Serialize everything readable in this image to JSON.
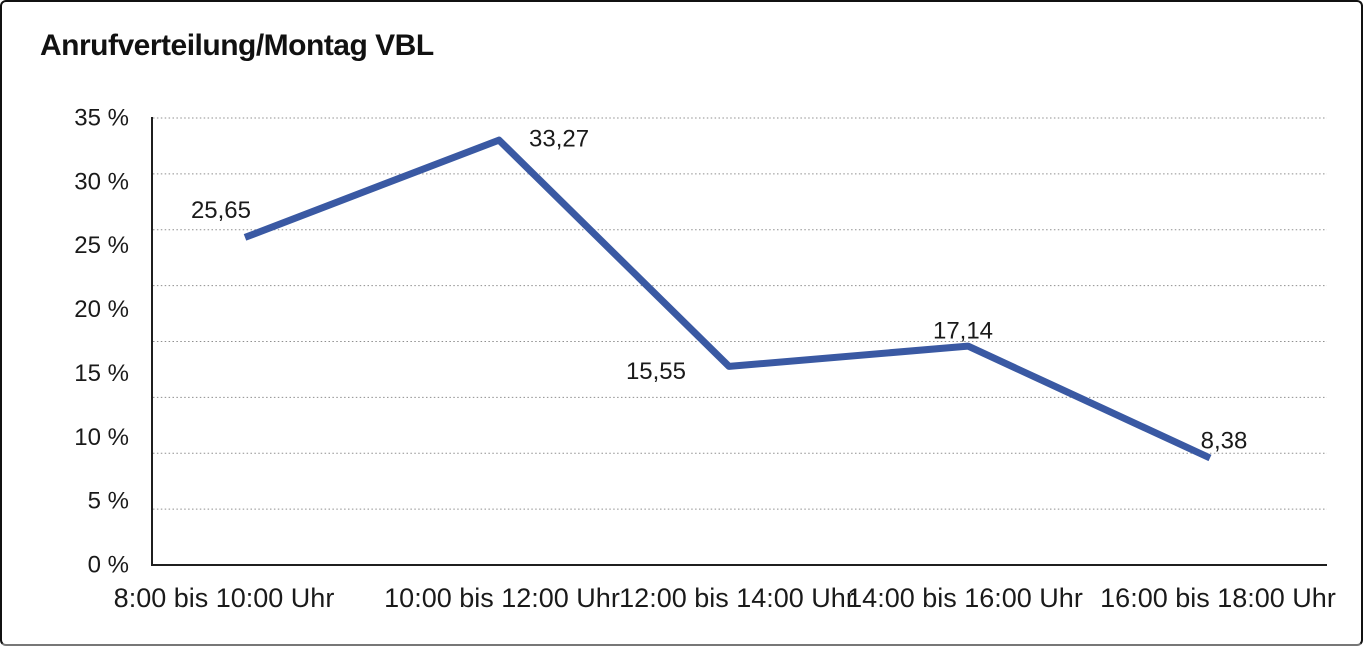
{
  "title": "Anrufverteilung/Montag VBL",
  "chart_data": {
    "type": "line",
    "title": "Anrufverteilung/Montag VBL",
    "categories": [
      "8:00 bis 10:00 Uhr",
      "10:00 bis 12:00 Uhr",
      "12:00 bis 14:00 Uhr",
      "14:00 bis 16:00 Uhr",
      "16:00 bis 18:00 Uhr"
    ],
    "series": [
      {
        "name": "",
        "values": [
          25.65,
          33.27,
          15.55,
          17.14,
          8.38
        ],
        "value_labels": [
          "25,65",
          "33,27",
          "15,55",
          "17,14",
          "8,38"
        ],
        "color": "#3A59A3"
      }
    ],
    "y_tick_labels": [
      "35 %",
      "30 %",
      "25 %",
      "20 %",
      "15 %",
      "10 %",
      "5 %",
      "0 %"
    ],
    "ylim": [
      0,
      35
    ],
    "xlabel": "",
    "ylabel": "",
    "legend": "none",
    "grid": {
      "horizontal": true,
      "style": "dotted"
    }
  },
  "colors": {
    "line": "#3A59A3",
    "gridline": "#8f8f8f",
    "axis": "#1f1f1f",
    "text": "#1a1a1a"
  }
}
